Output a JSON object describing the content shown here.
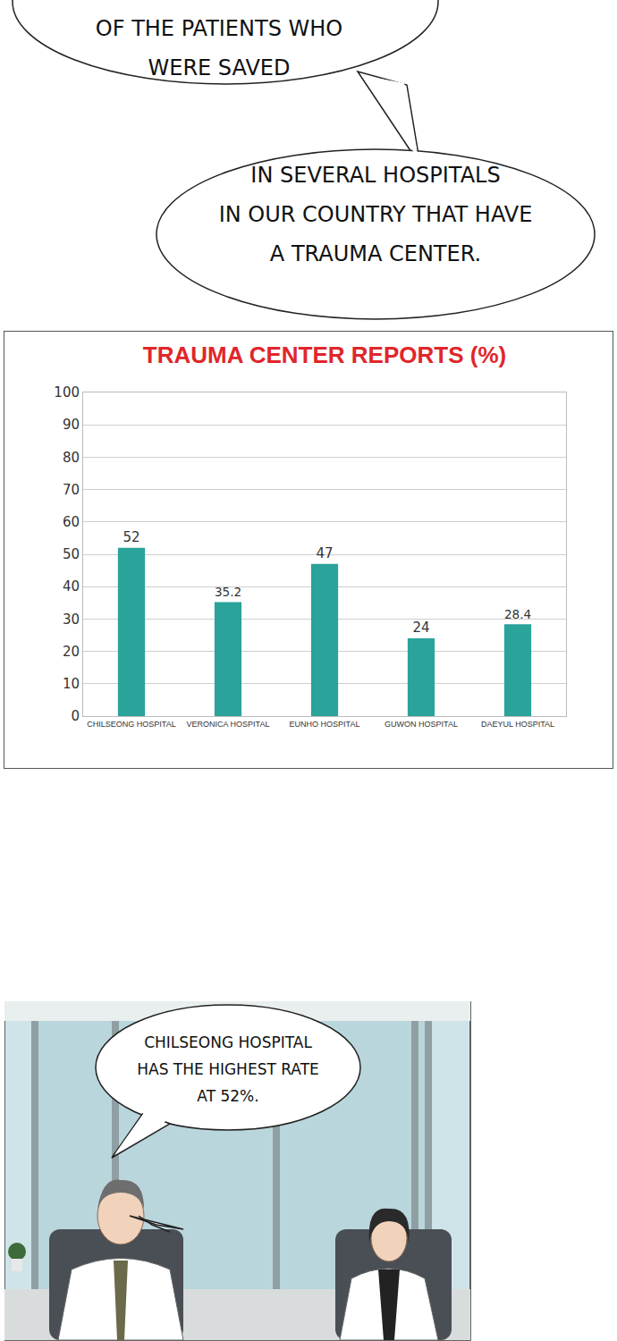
{
  "chart_data": {
    "type": "bar",
    "title": "TRAUMA CENTER REPORTS (%)",
    "categories": [
      "CHILSEONG HOSPITAL",
      "VERONICA HOSPITAL",
      "EUNHO HOSPITAL",
      "GUWON HOSPITAL",
      "DAEYUL HOSPITAL"
    ],
    "values": [
      52,
      35.2,
      47,
      24,
      28.4
    ],
    "color": "#2aa39b",
    "ylim": [
      0,
      100
    ],
    "yticks": [
      0,
      10,
      20,
      30,
      40,
      50,
      60,
      70,
      80,
      90,
      100
    ],
    "grid": true,
    "data_labels": true
  },
  "speech_bubbles": [
    {
      "lines": [
        "OF THE PATIENTS WHO",
        "WERE SAVED"
      ]
    },
    {
      "lines": [
        "IN SEVERAL HOSPITALS",
        "IN OUR COUNTRY THAT HAVE",
        "A TRAUMA CENTER."
      ]
    },
    {
      "lines": [
        "CHILSEONG HOSPITAL",
        "HAS THE HIGHEST RATE",
        "AT 52%."
      ]
    }
  ]
}
